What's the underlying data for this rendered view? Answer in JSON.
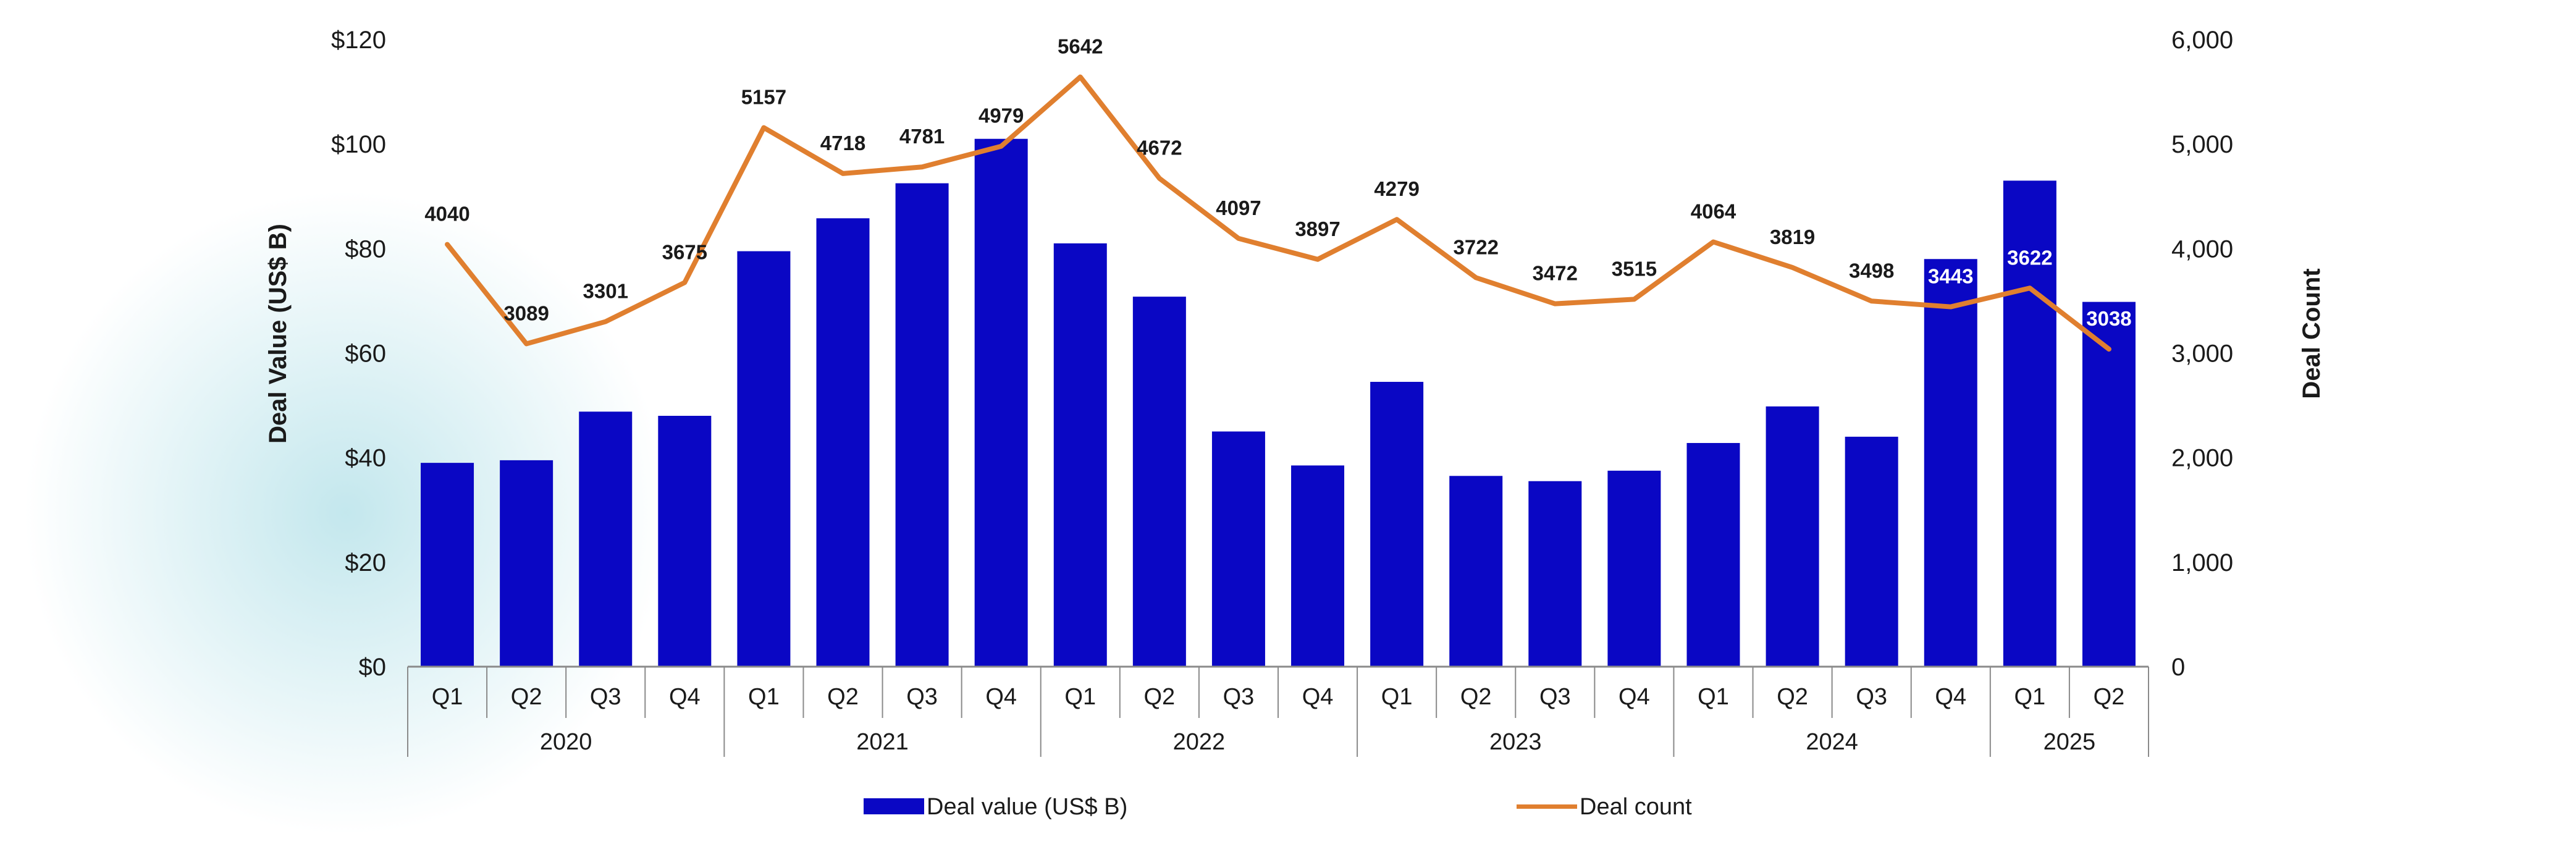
{
  "colors": {
    "bar": "#0a07c4",
    "line": "#e07f2f",
    "axis": "#8a8a8a",
    "glow": "#b9e3ea"
  },
  "chart_data": {
    "type": "bar",
    "combo": "bar+line (dual axis)",
    "categories": [
      "Q1",
      "Q2",
      "Q3",
      "Q4",
      "Q1",
      "Q2",
      "Q3",
      "Q4",
      "Q1",
      "Q2",
      "Q3",
      "Q4",
      "Q1",
      "Q2",
      "Q3",
      "Q4",
      "Q1",
      "Q2",
      "Q3",
      "Q4",
      "Q1",
      "Q2"
    ],
    "years": [
      {
        "label": "2020",
        "span": 4
      },
      {
        "label": "2021",
        "span": 4
      },
      {
        "label": "2022",
        "span": 4
      },
      {
        "label": "2023",
        "span": 4
      },
      {
        "label": "2024",
        "span": 4
      },
      {
        "label": "2025",
        "span": 2
      }
    ],
    "series": [
      {
        "name": "Deal value (US$ B)",
        "type": "bar",
        "axis": "left",
        "values": [
          39,
          39.5,
          48.8,
          48,
          79.5,
          85.8,
          92.5,
          101,
          81,
          70.8,
          45,
          38.5,
          54.5,
          36.5,
          35.5,
          37.5,
          42.8,
          49.8,
          44,
          78,
          93,
          69.8
        ]
      },
      {
        "name": "Deal count",
        "type": "line",
        "axis": "right",
        "values": [
          4040,
          3089,
          3301,
          3675,
          5157,
          4718,
          4781,
          4979,
          5642,
          4672,
          4097,
          3897,
          4279,
          3722,
          3472,
          3515,
          4064,
          3819,
          3498,
          3443,
          3622,
          3038
        ],
        "labels": [
          "4040",
          "3089",
          "3301",
          "3675",
          "5157",
          "4718",
          "4781",
          "4979",
          "5642",
          "4672",
          "4097",
          "3897",
          "4279",
          "3722",
          "3472",
          "3515",
          "4064",
          "3819",
          "3498",
          "3443",
          "3622",
          "3038"
        ]
      }
    ],
    "ylabel": "Deal Value (US$ B)",
    "y2label": "Deal Count",
    "ylim": [
      0,
      120
    ],
    "y2lim": [
      0,
      6000
    ],
    "yticks": [
      "$0",
      "$20",
      "$40",
      "$60",
      "$80",
      "$100",
      "$120"
    ],
    "y2ticks": [
      "0",
      "1,000",
      "2,000",
      "3,000",
      "4,000",
      "5,000",
      "6,000"
    ],
    "grid": false,
    "legend": "bottom"
  }
}
